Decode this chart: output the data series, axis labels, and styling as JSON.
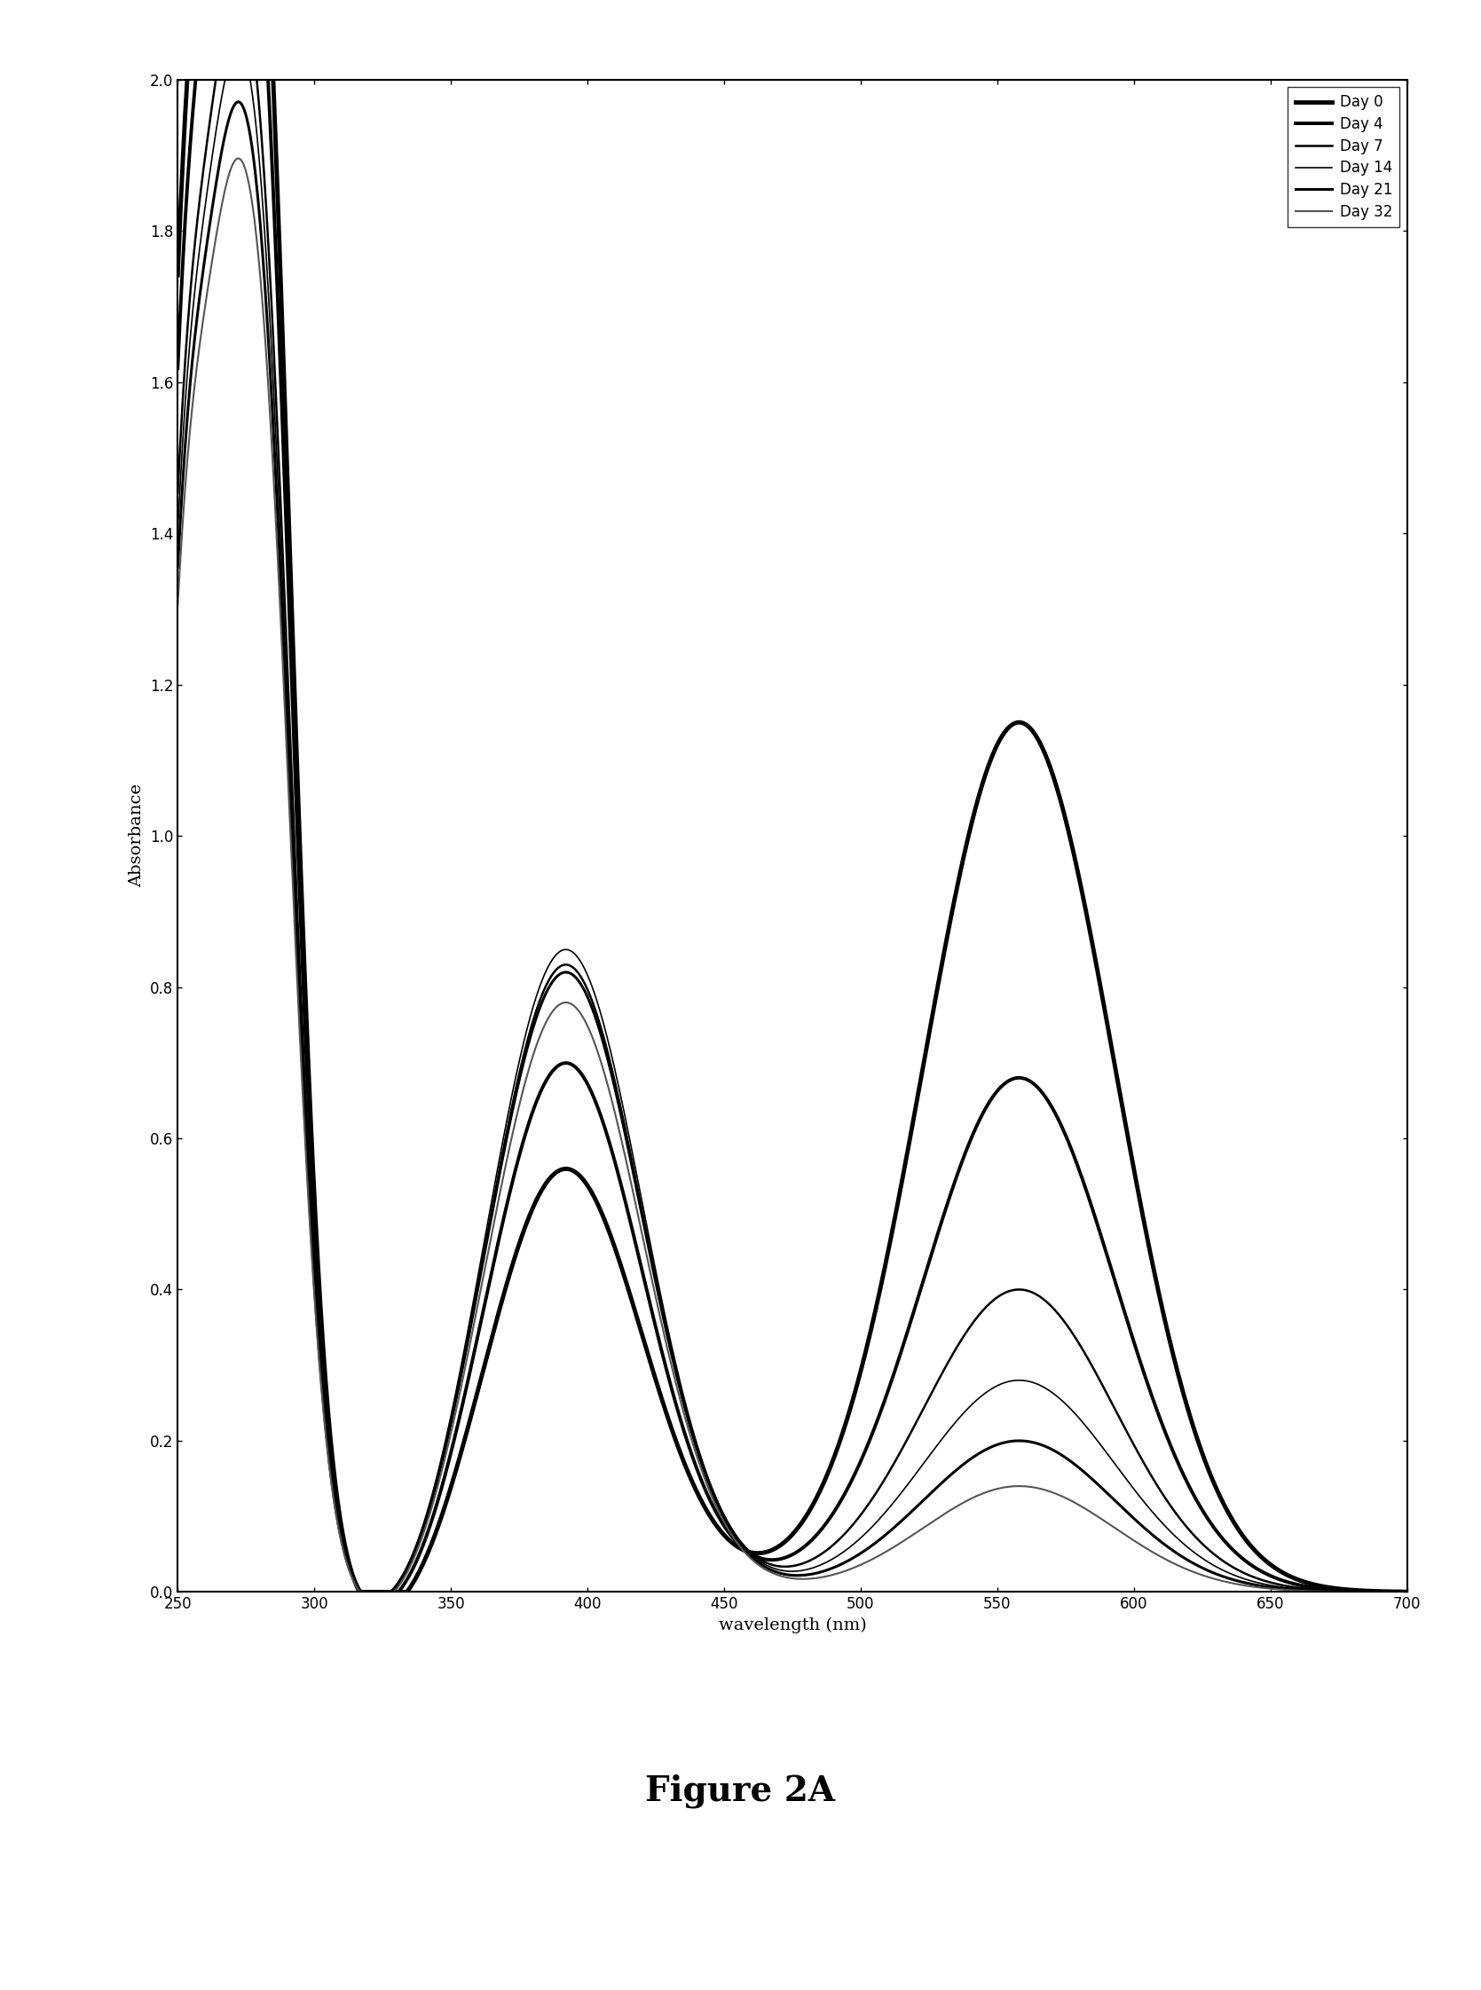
{
  "title": "Figure 2A",
  "xlabel": "wavelength (nm)",
  "ylabel": "Absorbance",
  "xlim": [
    250,
    700
  ],
  "ylim": [
    0,
    2
  ],
  "xticks": [
    250,
    300,
    350,
    400,
    450,
    500,
    550,
    600,
    650,
    700
  ],
  "yticks": [
    0,
    0.2,
    0.4,
    0.6,
    0.8,
    1.0,
    1.2,
    1.4,
    1.6,
    1.8,
    2.0
  ],
  "series": [
    {
      "label": "Day 0",
      "linewidth": 3.5,
      "color": "#000000",
      "peak1": 1.97,
      "peak2": 0.56,
      "peak3": 1.15
    },
    {
      "label": "Day 4",
      "linewidth": 2.8,
      "color": "#000000",
      "peak1": 1.82,
      "peak2": 0.7,
      "peak3": 0.68
    },
    {
      "label": "Day 7",
      "linewidth": 1.8,
      "color": "#000000",
      "peak1": 1.62,
      "peak2": 0.83,
      "peak3": 0.4
    },
    {
      "label": "Day 14",
      "linewidth": 1.2,
      "color": "#000000",
      "peak1": 1.56,
      "peak2": 0.85,
      "peak3": 0.28
    },
    {
      "label": "Day 21",
      "linewidth": 2.2,
      "color": "#000000",
      "peak1": 1.5,
      "peak2": 0.82,
      "peak3": 0.2
    },
    {
      "label": "Day 32",
      "linewidth": 1.5,
      "color": "#555555",
      "peak1": 1.44,
      "peak2": 0.78,
      "peak3": 0.14
    }
  ],
  "background_color": "#ffffff",
  "figure_caption": "Figure 2A",
  "caption_fontsize": 28,
  "caption_fontweight": "bold"
}
